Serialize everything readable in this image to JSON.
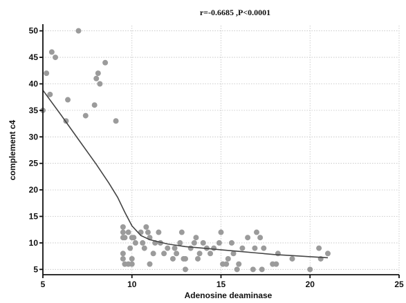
{
  "chart_data": {
    "type": "scatter",
    "title": "r=-0.6685 ,P<0.0001",
    "xlabel": "Adenosine deaminase",
    "ylabel": "complement c4",
    "xlim": [
      5,
      25
    ],
    "ylim": [
      4,
      51
    ],
    "xticks": [
      5,
      10,
      15,
      20,
      25
    ],
    "yticks": [
      5,
      10,
      15,
      20,
      25,
      30,
      35,
      40,
      45,
      50
    ],
    "grid": true,
    "series": [
      {
        "kind": "points",
        "points": [
          [
            5.0,
            35
          ],
          [
            5.2,
            42
          ],
          [
            5.4,
            38
          ],
          [
            5.5,
            46
          ],
          [
            5.7,
            45
          ],
          [
            6.3,
            33
          ],
          [
            6.4,
            37
          ],
          [
            7.0,
            50
          ],
          [
            7.4,
            34
          ],
          [
            7.9,
            36
          ],
          [
            8.0,
            41
          ],
          [
            8.1,
            42
          ],
          [
            8.2,
            40
          ],
          [
            8.5,
            44
          ],
          [
            9.1,
            33
          ],
          [
            9.5,
            13
          ],
          [
            9.5,
            12
          ],
          [
            9.5,
            11
          ],
          [
            9.5,
            8
          ],
          [
            9.5,
            7
          ],
          [
            9.6,
            6
          ],
          [
            9.6,
            11
          ],
          [
            9.8,
            12
          ],
          [
            9.8,
            6
          ],
          [
            9.9,
            9
          ],
          [
            10.0,
            11
          ],
          [
            10.0,
            7
          ],
          [
            10.0,
            6
          ],
          [
            10.1,
            11
          ],
          [
            10.2,
            10
          ],
          [
            10.5,
            12
          ],
          [
            10.6,
            10
          ],
          [
            10.7,
            9
          ],
          [
            10.8,
            13
          ],
          [
            10.9,
            12
          ],
          [
            11.0,
            11
          ],
          [
            11.0,
            6
          ],
          [
            11.2,
            8
          ],
          [
            11.3,
            10
          ],
          [
            11.5,
            12
          ],
          [
            11.6,
            10
          ],
          [
            11.8,
            8
          ],
          [
            12.0,
            9
          ],
          [
            12.3,
            7
          ],
          [
            12.4,
            9
          ],
          [
            12.5,
            8
          ],
          [
            12.7,
            10
          ],
          [
            12.8,
            12
          ],
          [
            12.9,
            7
          ],
          [
            13.0,
            7
          ],
          [
            13.0,
            5
          ],
          [
            13.3,
            9
          ],
          [
            13.5,
            10
          ],
          [
            13.6,
            11
          ],
          [
            13.7,
            7
          ],
          [
            13.8,
            8
          ],
          [
            14.0,
            10
          ],
          [
            14.2,
            9
          ],
          [
            14.4,
            8
          ],
          [
            14.6,
            9
          ],
          [
            14.9,
            10
          ],
          [
            15.0,
            12
          ],
          [
            15.1,
            6
          ],
          [
            15.3,
            6
          ],
          [
            15.4,
            7
          ],
          [
            15.6,
            10
          ],
          [
            15.7,
            8
          ],
          [
            15.9,
            5
          ],
          [
            16.0,
            6
          ],
          [
            16.2,
            9
          ],
          [
            16.5,
            11
          ],
          [
            16.8,
            5
          ],
          [
            16.9,
            9
          ],
          [
            17.0,
            12
          ],
          [
            17.2,
            11
          ],
          [
            17.3,
            5
          ],
          [
            17.4,
            9
          ],
          [
            17.9,
            6
          ],
          [
            18.1,
            6
          ],
          [
            18.2,
            8
          ],
          [
            19.0,
            7
          ],
          [
            20.0,
            5
          ],
          [
            20.5,
            9
          ],
          [
            20.6,
            7
          ],
          [
            21.0,
            8
          ]
        ]
      },
      {
        "kind": "trend",
        "points": [
          [
            5.0,
            38.8
          ],
          [
            6.0,
            34.2
          ],
          [
            7.0,
            29.5
          ],
          [
            8.0,
            24.8
          ],
          [
            8.7,
            21.3
          ],
          [
            9.2,
            18.6
          ],
          [
            9.6,
            15.8
          ],
          [
            10.0,
            13.2
          ],
          [
            10.5,
            11.4
          ],
          [
            11.0,
            10.6
          ],
          [
            12.0,
            9.8
          ],
          [
            13.0,
            9.3
          ],
          [
            14.0,
            9.0
          ],
          [
            15.0,
            8.7
          ],
          [
            16.0,
            8.4
          ],
          [
            17.0,
            8.1
          ],
          [
            18.0,
            7.8
          ],
          [
            19.0,
            7.6
          ],
          [
            20.0,
            7.4
          ],
          [
            21.0,
            7.2
          ]
        ]
      }
    ]
  }
}
